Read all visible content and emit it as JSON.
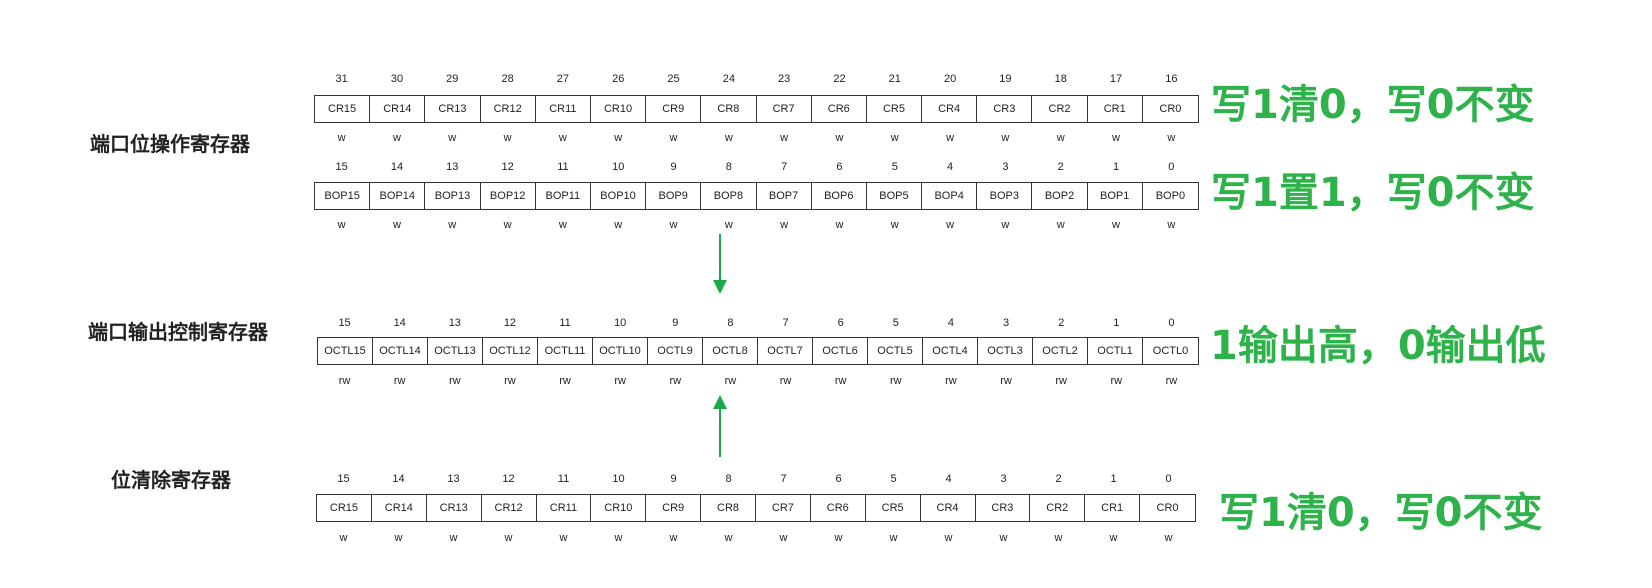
{
  "registers": [
    {
      "label": "端口位操作寄存器",
      "rows": [
        {
          "bits": [
            "31",
            "30",
            "29",
            "28",
            "27",
            "26",
            "25",
            "24",
            "23",
            "22",
            "21",
            "20",
            "19",
            "18",
            "17",
            "16"
          ],
          "fields": [
            "CR15",
            "CR14",
            "CR13",
            "CR12",
            "CR11",
            "CR10",
            "CR9",
            "CR8",
            "CR7",
            "CR6",
            "CR5",
            "CR4",
            "CR3",
            "CR2",
            "CR1",
            "CR0"
          ],
          "access": [
            "w",
            "w",
            "w",
            "w",
            "w",
            "w",
            "w",
            "w",
            "w",
            "w",
            "w",
            "w",
            "w",
            "w",
            "w",
            "w"
          ],
          "annotation": "写1清0，写0不变"
        },
        {
          "bits": [
            "15",
            "14",
            "13",
            "12",
            "11",
            "10",
            "9",
            "8",
            "7",
            "6",
            "5",
            "4",
            "3",
            "2",
            "1",
            "0"
          ],
          "fields": [
            "BOP15",
            "BOP14",
            "BOP13",
            "BOP12",
            "BOP11",
            "BOP10",
            "BOP9",
            "BOP8",
            "BOP7",
            "BOP6",
            "BOP5",
            "BOP4",
            "BOP3",
            "BOP2",
            "BOP1",
            "BOP0"
          ],
          "access": [
            "w",
            "w",
            "w",
            "w",
            "w",
            "w",
            "w",
            "w",
            "w",
            "w",
            "w",
            "w",
            "w",
            "w",
            "w",
            "w"
          ],
          "annotation": "写1置1，写0不变"
        }
      ]
    },
    {
      "label": "端口输出控制寄存器",
      "rows": [
        {
          "bits": [
            "15",
            "14",
            "13",
            "12",
            "11",
            "10",
            "9",
            "8",
            "7",
            "6",
            "5",
            "4",
            "3",
            "2",
            "1",
            "0"
          ],
          "fields": [
            "OCTL15",
            "OCTL14",
            "OCTL13",
            "OCTL12",
            "OCTL11",
            "OCTL10",
            "OCTL9",
            "OCTL8",
            "OCTL7",
            "OCTL6",
            "OCTL5",
            "OCTL4",
            "OCTL3",
            "OCTL2",
            "OCTL1",
            "OCTL0"
          ],
          "access": [
            "rw",
            "rw",
            "rw",
            "rw",
            "rw",
            "rw",
            "rw",
            "rw",
            "rw",
            "rw",
            "rw",
            "rw",
            "rw",
            "rw",
            "rw",
            "rw"
          ],
          "annotation": "1输出高，0输出低"
        }
      ]
    },
    {
      "label": "位清除寄存器",
      "rows": [
        {
          "bits": [
            "15",
            "14",
            "13",
            "12",
            "11",
            "10",
            "9",
            "8",
            "7",
            "6",
            "5",
            "4",
            "3",
            "2",
            "1",
            "0"
          ],
          "fields": [
            "CR15",
            "CR14",
            "CR13",
            "CR12",
            "CR11",
            "CR10",
            "CR9",
            "CR8",
            "CR7",
            "CR6",
            "CR5",
            "CR4",
            "CR3",
            "CR2",
            "CR1",
            "CR0"
          ],
          "access": [
            "w",
            "w",
            "w",
            "w",
            "w",
            "w",
            "w",
            "w",
            "w",
            "w",
            "w",
            "w",
            "w",
            "w",
            "w",
            "w"
          ],
          "annotation": "写1清0，写0不变"
        }
      ]
    }
  ],
  "colors": {
    "annotation": "#2db34a",
    "arrow": "#1aa84a",
    "border": "#333333"
  }
}
